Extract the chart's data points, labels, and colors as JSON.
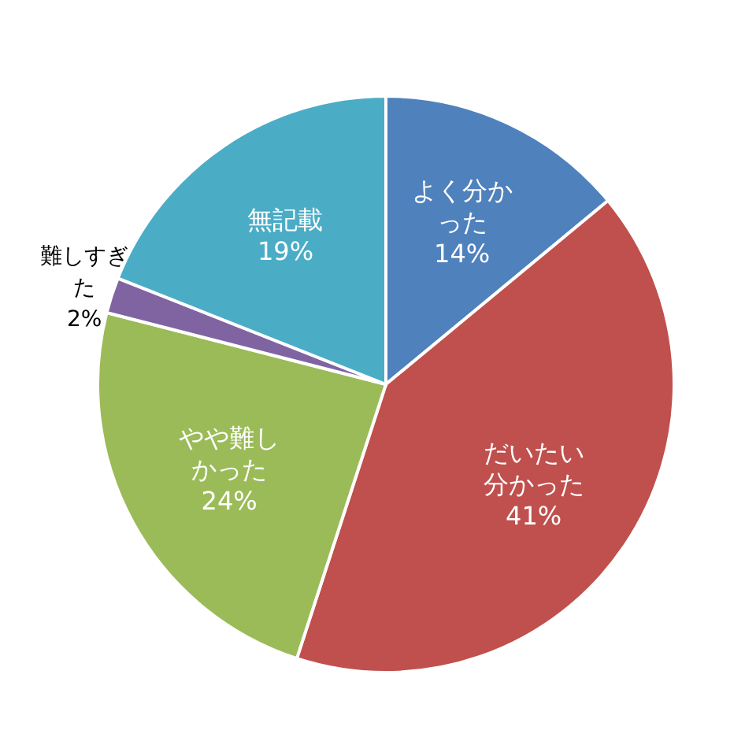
{
  "chart_data": {
    "type": "pie",
    "categories": [
      "よく分かった",
      "だいたい分かった",
      "やや難しかった",
      "難しすぎた",
      "無記載"
    ],
    "values": [
      14,
      41,
      24,
      2,
      19
    ],
    "value_labels": [
      "14%",
      "41%",
      "24%",
      "2%",
      "19%"
    ],
    "colors": [
      "#4f81bd",
      "#c0504d",
      "#9bbb59",
      "#8064a2",
      "#4bacc6"
    ]
  }
}
